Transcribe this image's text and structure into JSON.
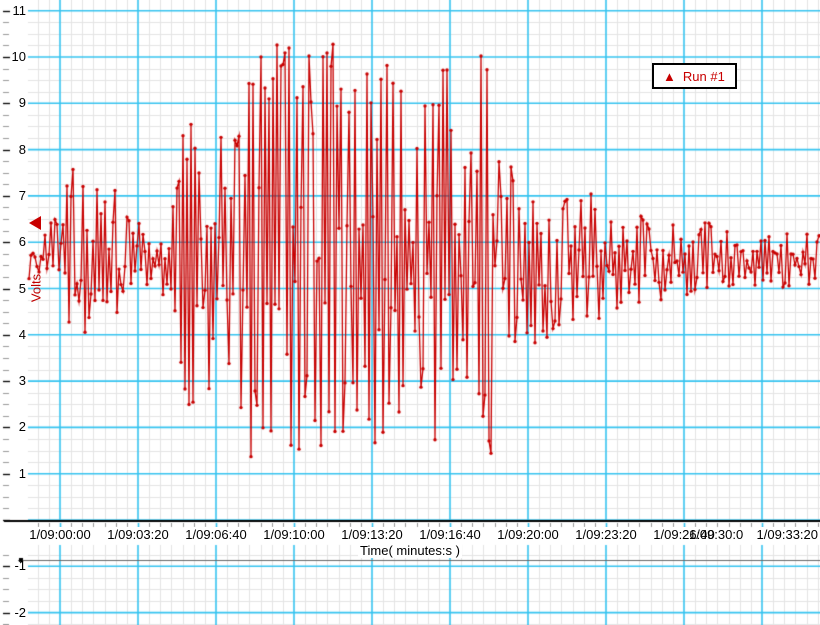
{
  "legend": {
    "label": "Run #1",
    "marker_icon": "triangle-up-icon",
    "color": "#c80000"
  },
  "axes": {
    "x": {
      "title": "Time( minutes:s )",
      "tick_labels": [
        "1/09:00:00",
        "1/09:03:20",
        "1/09:06:40",
        "1/09:10:00",
        "1/09:13:20",
        "1/09:16:40",
        "1/09:20:00",
        "1/09:23:20",
        "1/09:26:40",
        "1/09:30:0",
        "1/09:33:20"
      ]
    },
    "y": {
      "title": "Volts",
      "tick_labels": [
        "11",
        "10",
        "9",
        "8",
        "7",
        "6",
        "5",
        "4",
        "3",
        "2",
        "1",
        "-1",
        "-2"
      ],
      "tick_values": [
        11,
        10,
        9,
        8,
        7,
        6,
        5,
        4,
        3,
        2,
        1,
        -1,
        -2
      ],
      "range_shown": [
        -2.25,
        11.25
      ],
      "minor_step": 0.25
    }
  },
  "annotations": {
    "left_channel_marker": {
      "shape": "triangle-left",
      "value": 6.4,
      "color": "#c80000"
    }
  },
  "style": {
    "series_color": "#c80000",
    "major_grid_color": "#35c4f0",
    "minor_grid_color": "#e4e4e4",
    "background": "#ffffff",
    "axis_line_color": "#000000"
  },
  "chart_data": {
    "type": "line",
    "series_name": "Run #1",
    "title": "",
    "xlabel": "Time( minutes:s )",
    "ylabel": "Volts",
    "x_tick_labels": [
      "1/09:00:00",
      "1/09:03:20",
      "1/09:06:40",
      "1/09:10:00",
      "1/09:13:20",
      "1/09:16:40",
      "1/09:20:00",
      "1/09:23:20",
      "1/09:26:40",
      "1/09:30:0",
      "1/09:33:20"
    ],
    "seconds_per_major_division": 200,
    "ylim_visible": [
      -2.25,
      11.25
    ],
    "baseline_volts": 5.6,
    "clip_levels_volts": [
      1.3,
      10.35
    ],
    "marker_style": "dot",
    "grid": "on",
    "legend_position": "top-right",
    "envelope_top_bottom_by_fraction": [
      [
        0.0,
        6.1,
        5.0
      ],
      [
        0.021,
        6.2,
        5.0
      ],
      [
        0.038,
        6.9,
        4.4
      ],
      [
        0.048,
        7.2,
        4.0
      ],
      [
        0.063,
        8.0,
        3.5
      ],
      [
        0.076,
        7.2,
        4.1
      ],
      [
        0.091,
        7.0,
        4.3
      ],
      [
        0.106,
        7.4,
        4.1
      ],
      [
        0.119,
        6.7,
        4.6
      ],
      [
        0.141,
        6.4,
        4.8
      ],
      [
        0.154,
        6.3,
        4.9
      ],
      [
        0.167,
        6.5,
        4.8
      ],
      [
        0.186,
        6.9,
        4.4
      ],
      [
        0.198,
        9.3,
        2.6
      ],
      [
        0.211,
        8.2,
        2.0
      ],
      [
        0.223,
        8.6,
        3.0
      ],
      [
        0.236,
        9.4,
        2.4
      ],
      [
        0.253,
        8.6,
        3.1
      ],
      [
        0.268,
        9.2,
        2.0
      ],
      [
        0.283,
        10.35,
        1.3
      ],
      [
        0.306,
        10.35,
        1.3
      ],
      [
        0.331,
        10.35,
        1.3
      ],
      [
        0.356,
        10.35,
        1.3
      ],
      [
        0.381,
        10.35,
        1.3
      ],
      [
        0.4,
        10.35,
        1.3
      ],
      [
        0.409,
        9.0,
        2.5
      ],
      [
        0.419,
        10.35,
        1.3
      ],
      [
        0.444,
        10.35,
        1.3
      ],
      [
        0.463,
        10.35,
        1.3
      ],
      [
        0.476,
        8.6,
        2.8
      ],
      [
        0.489,
        7.9,
        3.3
      ],
      [
        0.505,
        9.5,
        2.0
      ],
      [
        0.52,
        10.35,
        1.3
      ],
      [
        0.533,
        10.35,
        1.3
      ],
      [
        0.545,
        8.0,
        3.2
      ],
      [
        0.558,
        8.8,
        2.6
      ],
      [
        0.571,
        10.35,
        1.3
      ],
      [
        0.586,
        10.35,
        1.3
      ],
      [
        0.596,
        8.2,
        3.2
      ],
      [
        0.611,
        7.7,
        3.6
      ],
      [
        0.627,
        7.2,
        4.0
      ],
      [
        0.646,
        7.6,
        3.6
      ],
      [
        0.665,
        7.1,
        4.1
      ],
      [
        0.684,
        6.9,
        4.3
      ],
      [
        0.703,
        7.1,
        4.2
      ],
      [
        0.722,
        7.0,
        4.3
      ],
      [
        0.741,
        6.8,
        4.5
      ],
      [
        0.76,
        6.7,
        4.6
      ],
      [
        0.785,
        6.6,
        4.7
      ],
      [
        0.811,
        6.5,
        4.8
      ],
      [
        0.836,
        6.4,
        4.9
      ],
      [
        0.861,
        6.5,
        4.8
      ],
      [
        0.886,
        6.2,
        5.0
      ],
      [
        0.911,
        6.1,
        5.1
      ],
      [
        0.937,
        6.1,
        5.1
      ],
      [
        0.962,
        6.2,
        5.0
      ],
      [
        1.0,
        6.1,
        5.1
      ]
    ]
  }
}
